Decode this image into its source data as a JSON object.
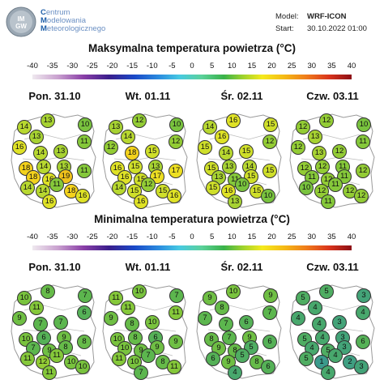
{
  "header": {
    "logo_text": "IMGW",
    "institution": [
      {
        "cap": "C",
        "rest": "entrum"
      },
      {
        "cap": "M",
        "rest": "odelowania"
      },
      {
        "cap": "M",
        "rest": "eteorologicznego"
      }
    ],
    "model_label": "Model:",
    "model_value": "WRF-ICON",
    "start_label": "Start:",
    "start_value": "30.10.2022 01:00"
  },
  "colors": {
    "t19": "#f0c21b",
    "t18": "#f4d21c",
    "t17": "#eddf22",
    "t16": "#dfe226",
    "t15": "#cfdf2a",
    "t14": "#b8d830",
    "t13": "#a7d232",
    "t12": "#93cc35",
    "t11": "#85c83a",
    "t10": "#79c33e",
    "t9": "#6fbf44",
    "t8": "#66bb49",
    "t7": "#5cb64e",
    "t6": "#55b157",
    "t5": "#4fad62",
    "t4": "#48a86d",
    "t3": "#43a378",
    "t2": "#3f9f82",
    "t1": "#3b9a8c"
  },
  "scale_ticks": [
    "-40",
    "-35",
    "-30",
    "-25",
    "-20",
    "-15",
    "-10",
    "-5",
    "0",
    "5",
    "10",
    "15",
    "20",
    "25",
    "30",
    "35",
    "40"
  ],
  "sections": [
    {
      "title": "Maksymalna temperatura powietrza (°C)",
      "days": [
        {
          "label": "Pon. 31.10",
          "values": [
            "14",
            "13",
            "10",
            "13",
            "11",
            "16",
            "14",
            "13",
            "18",
            "14",
            "13",
            "18",
            "16",
            "19",
            "11",
            "14",
            "14",
            "11",
            "18",
            "16",
            "16"
          ]
        },
        {
          "label": "Wt. 01.11",
          "values": [
            "13",
            "12",
            "10",
            "14",
            "12",
            "12",
            "18",
            "15",
            "16",
            "15",
            "13",
            "16",
            "15",
            "17",
            "17",
            "14",
            "15",
            "12",
            "15",
            "16",
            "16"
          ]
        },
        {
          "label": "Śr. 02.11",
          "values": [
            "14",
            "16",
            "15",
            "16",
            "12",
            "15",
            "14",
            "15",
            "15",
            "13",
            "14",
            "13",
            "11",
            "15",
            "15",
            "15",
            "16",
            "10",
            "15",
            "13",
            "10"
          ]
        },
        {
          "label": "Czw. 03.11",
          "values": [
            "12",
            "12",
            "10",
            "13",
            "11",
            "12",
            "13",
            "12",
            "12",
            "12",
            "11",
            "11",
            "12",
            "11",
            "12",
            "10",
            "12",
            "11",
            "12",
            "11",
            "12"
          ]
        }
      ]
    },
    {
      "title": "Minimalna temperatura powietrza (°C)",
      "days": [
        {
          "label": "Pon. 31.10",
          "values": [
            "10",
            "8",
            "7",
            "11",
            "6",
            "9",
            "7",
            "7",
            "10",
            "6",
            "9",
            "7",
            "9",
            "8",
            "8",
            "11",
            "12",
            "11",
            "10",
            "11",
            "10"
          ]
        },
        {
          "label": "Wt. 01.11",
          "values": [
            "11",
            "10",
            "7",
            "11",
            "11",
            "9",
            "8",
            "10",
            "10",
            "8",
            "6",
            "10",
            "9",
            "9",
            "9",
            "11",
            "10",
            "7",
            "8",
            "7",
            "11"
          ]
        },
        {
          "label": "Śr. 02.11",
          "values": [
            "9",
            "10",
            "9",
            "8",
            "7",
            "7",
            "7",
            "6",
            "8",
            "7",
            "9",
            "9",
            "8",
            "5",
            "6",
            "6",
            "9",
            "5",
            "8",
            "4",
            "6"
          ]
        },
        {
          "label": "Czw. 03.11",
          "values": [
            "5",
            "5",
            "3",
            "4",
            "4",
            "4",
            "4",
            "3",
            "5",
            "4",
            "3",
            "4",
            "5",
            "3",
            "6",
            "5",
            "1",
            "4",
            "2",
            "4",
            "3"
          ]
        }
      ]
    }
  ]
}
